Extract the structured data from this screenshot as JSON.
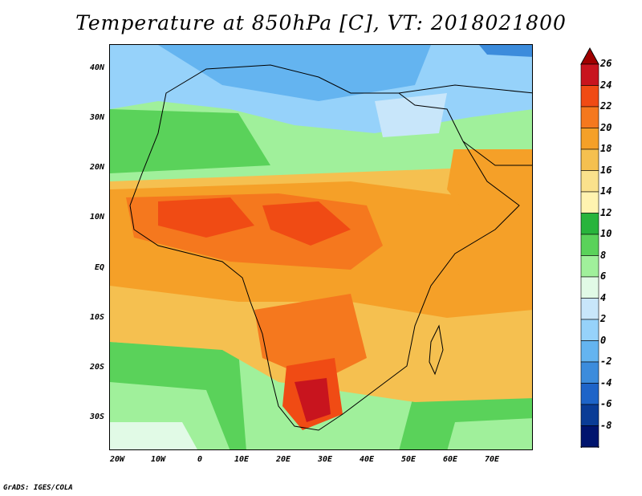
{
  "title": "Temperature at 850hPa [C], VT: 2018021800",
  "credit": "GrADS: IGES/COLA",
  "axes": {
    "x_ticks": [
      "20W",
      "10W",
      "0",
      "10E",
      "20E",
      "30E",
      "40E",
      "50E",
      "60E",
      "70E"
    ],
    "y_ticks": [
      "40N",
      "30N",
      "20N",
      "10N",
      "EQ",
      "10S",
      "20S",
      "30S"
    ],
    "lon_range": [
      -22,
      80
    ],
    "lat_range": [
      -36,
      45
    ]
  },
  "colorbar": {
    "labels": [
      "26",
      "24",
      "22",
      "20",
      "18",
      "16",
      "14",
      "12",
      "10",
      "8",
      "6",
      "4",
      "2",
      "0",
      "-2",
      "-4",
      "-6",
      "-8"
    ],
    "colors": [
      "#c8141e",
      "#f04b14",
      "#f5781e",
      "#f5a028",
      "#f5c050",
      "#fae18c",
      "#fff3b0",
      "#28b43c",
      "#5ad25a",
      "#a0f09b",
      "#e1fae6",
      "#c8e6fa",
      "#96d2fa",
      "#64b4f0",
      "#3c8cdc",
      "#1e64c8",
      "#0a3c96",
      "#00146e"
    ],
    "top_arrow_color": "#a00000",
    "bottom_arrow_color": "#e0e0ff"
  },
  "map": {
    "region": "Africa, Arabian Peninsula and Indian Ocean",
    "legend_title": ""
  }
}
